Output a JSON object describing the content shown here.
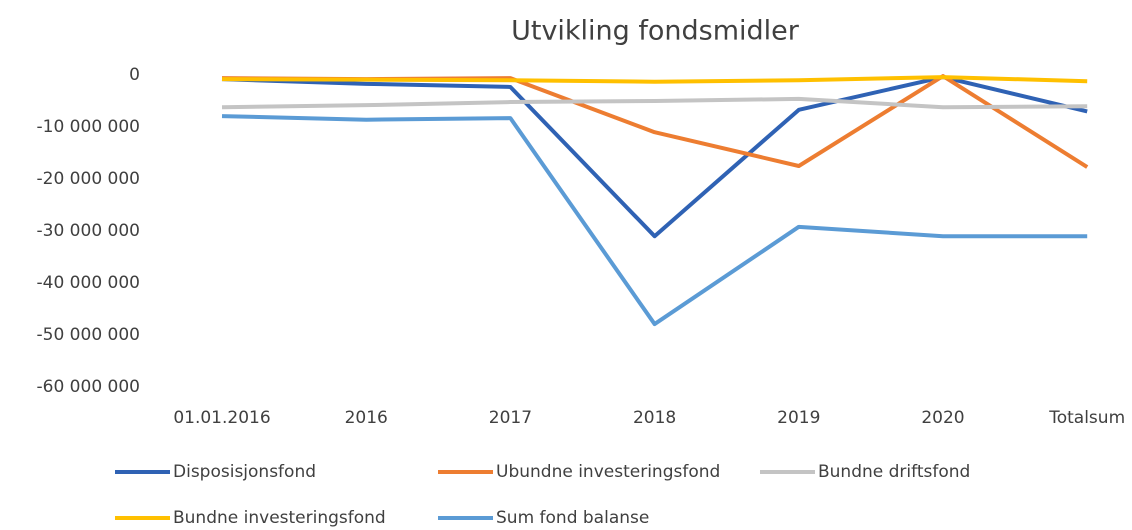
{
  "chart_data": {
    "type": "line",
    "title": "Utvikling fondsmidler",
    "categories": [
      "01.01.2016",
      "2016",
      "2017",
      "2018",
      "2019",
      "2020",
      "Totalsum"
    ],
    "series": [
      {
        "name": "Disposisjonsfond",
        "color": "#2f62b4",
        "values": [
          -800000,
          -1700000,
          -2300000,
          -31000000,
          -6700000,
          -400000,
          -7000000
        ]
      },
      {
        "name": "Ubundne investeringsfond",
        "color": "#ed7d31",
        "values": [
          -600000,
          -800000,
          -600000,
          -11000000,
          -17500000,
          -200000,
          -17700000
        ]
      },
      {
        "name": "Bundne driftsfond",
        "color": "#c4c4c4",
        "values": [
          -6200000,
          -5800000,
          -5200000,
          -5000000,
          -4600000,
          -6200000,
          -6000000
        ]
      },
      {
        "name": "Bundne investeringsfond",
        "color": "#ffc000",
        "values": [
          -800000,
          -900000,
          -1000000,
          -1300000,
          -1000000,
          -400000,
          -1200000
        ]
      },
      {
        "name": "Sum fond balanse",
        "color": "#5b9bd5",
        "values": [
          -7900000,
          -8600000,
          -8300000,
          -47900000,
          -29200000,
          -31000000,
          -31000000
        ]
      }
    ],
    "ylim": [
      -60000000,
      0
    ],
    "yticks": [
      {
        "value": -60000000,
        "label": "-60 000 000"
      },
      {
        "value": -50000000,
        "label": "-50 000 000"
      },
      {
        "value": -40000000,
        "label": "-40 000 000"
      },
      {
        "value": -30000000,
        "label": "-30 000 000"
      },
      {
        "value": -20000000,
        "label": "-20 000 000"
      },
      {
        "value": -10000000,
        "label": "-10 000 000"
      },
      0
    ],
    "grid": false
  }
}
